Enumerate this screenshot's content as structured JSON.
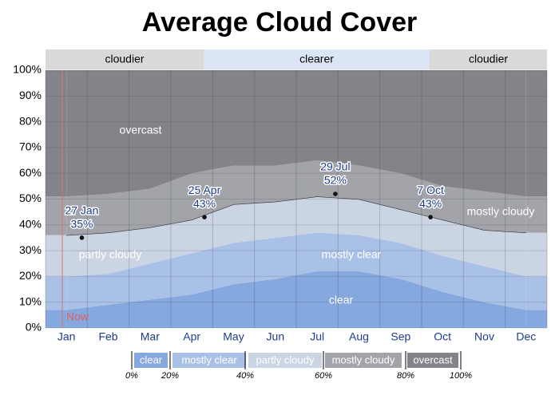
{
  "chart_data": {
    "type": "stacked-area",
    "title": "Average Cloud Cover",
    "categories": [
      "Jan",
      "Feb",
      "Mar",
      "Apr",
      "May",
      "Jun",
      "Jul",
      "Aug",
      "Sep",
      "Oct",
      "Nov",
      "Dec"
    ],
    "series": [
      {
        "name": "clear",
        "color": "#85a8de",
        "values": [
          7,
          9,
          11,
          13,
          17,
          19,
          22,
          22,
          19,
          14,
          10,
          7
        ]
      },
      {
        "name": "mostly clear",
        "color": "#a9c1e7",
        "values": [
          13,
          12,
          14,
          16,
          16,
          16,
          15,
          14,
          14,
          14,
          14,
          13
        ]
      },
      {
        "name": "partly cloudy",
        "color": "#cbd4e3",
        "values": [
          16,
          16,
          14,
          13,
          15,
          14,
          14,
          14,
          13,
          14,
          14,
          17
        ]
      },
      {
        "name": "mostly cloudy",
        "color": "#a2a4a9",
        "values": [
          15,
          15,
          15,
          18,
          15,
          14,
          14,
          13,
          14,
          13,
          15,
          14
        ]
      },
      {
        "name": "overcast",
        "color": "#838489",
        "values": [
          49,
          48,
          46,
          40,
          37,
          37,
          35,
          37,
          40,
          45,
          47,
          49
        ]
      }
    ],
    "ylim": [
      0,
      100
    ],
    "yticks": [
      {
        "value": 0,
        "label": "0%"
      },
      {
        "value": 10,
        "label": "10%"
      },
      {
        "value": 20,
        "label": "20%"
      },
      {
        "value": 30,
        "label": "30%"
      },
      {
        "value": 40,
        "label": "40%"
      },
      {
        "value": 50,
        "label": "50%"
      },
      {
        "value": 60,
        "label": "60%"
      },
      {
        "value": 70,
        "label": "70%"
      },
      {
        "value": 80,
        "label": "80%"
      },
      {
        "value": 90,
        "label": "90%"
      },
      {
        "value": 100,
        "label": "100%"
      }
    ],
    "grid": true,
    "bands": [
      "cloudier",
      "clearer",
      "cloudier"
    ],
    "area_labels": [
      "clear",
      "mostly clear",
      "partly cloudy",
      "mostly cloudy",
      "overcast"
    ],
    "now_label": "Now",
    "annotations": [
      {
        "date": "27 Jan",
        "value": 35,
        "label": "35%"
      },
      {
        "date": "25 Apr",
        "value": 43,
        "label": "43%"
      },
      {
        "date": "29 Jul",
        "value": 52,
        "label": "52%"
      },
      {
        "date": "7 Oct",
        "value": 43,
        "label": "43%"
      }
    ],
    "legend_ticks": [
      {
        "value": 0,
        "label": "0%"
      },
      {
        "value": 20,
        "label": "20%"
      },
      {
        "value": 40,
        "label": "40%"
      },
      {
        "value": 60,
        "label": "60%"
      },
      {
        "value": 80,
        "label": "80%"
      },
      {
        "value": 100,
        "label": "100%"
      }
    ]
  }
}
